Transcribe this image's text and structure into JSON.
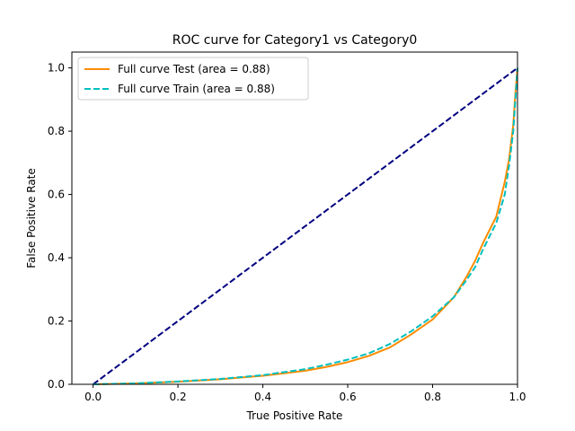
{
  "chart_data": {
    "type": "line",
    "title": "ROC curve for Category1 vs Category0",
    "xlabel": "True Positive Rate",
    "ylabel": "False Positive Rate",
    "xlim": [
      -0.05,
      1.0
    ],
    "ylim": [
      0.0,
      1.05
    ],
    "xticks": [
      "0.0",
      "0.2",
      "0.4",
      "0.6",
      "0.8",
      "1.0"
    ],
    "yticks": [
      "0.0",
      "0.2",
      "0.4",
      "0.6",
      "0.8",
      "1.0"
    ],
    "grid": false,
    "legend_position": "upper-left",
    "series": [
      {
        "name": "Full curve Test (area = 0.88)",
        "color": "#ff8c00",
        "style": "solid",
        "points": [
          [
            0.0,
            0.0
          ],
          [
            0.1,
            0.003
          ],
          [
            0.2,
            0.008
          ],
          [
            0.3,
            0.016
          ],
          [
            0.4,
            0.027
          ],
          [
            0.5,
            0.043
          ],
          [
            0.55,
            0.055
          ],
          [
            0.6,
            0.07
          ],
          [
            0.65,
            0.09
          ],
          [
            0.7,
            0.117
          ],
          [
            0.75,
            0.158
          ],
          [
            0.8,
            0.205
          ],
          [
            0.85,
            0.275
          ],
          [
            0.88,
            0.34
          ],
          [
            0.9,
            0.39
          ],
          [
            0.92,
            0.45
          ],
          [
            0.95,
            0.53
          ],
          [
            0.97,
            0.64
          ],
          [
            0.98,
            0.71
          ],
          [
            0.99,
            0.82
          ],
          [
            0.995,
            0.92
          ],
          [
            1.0,
            1.0
          ]
        ]
      },
      {
        "name": "Full curve Train (area = 0.88)",
        "color": "#00bfbf",
        "style": "dashed",
        "points": [
          [
            0.0,
            0.0
          ],
          [
            0.1,
            0.003
          ],
          [
            0.2,
            0.009
          ],
          [
            0.3,
            0.017
          ],
          [
            0.4,
            0.029
          ],
          [
            0.5,
            0.048
          ],
          [
            0.55,
            0.062
          ],
          [
            0.6,
            0.078
          ],
          [
            0.65,
            0.098
          ],
          [
            0.7,
            0.128
          ],
          [
            0.75,
            0.168
          ],
          [
            0.8,
            0.215
          ],
          [
            0.85,
            0.275
          ],
          [
            0.88,
            0.33
          ],
          [
            0.9,
            0.37
          ],
          [
            0.92,
            0.43
          ],
          [
            0.95,
            0.51
          ],
          [
            0.97,
            0.6
          ],
          [
            0.98,
            0.69
          ],
          [
            0.99,
            0.8
          ],
          [
            0.995,
            0.9
          ],
          [
            1.0,
            1.0
          ]
        ]
      },
      {
        "name": "",
        "color": "#000080",
        "style": "dashed",
        "points": [
          [
            0.0,
            0.0
          ],
          [
            1.0,
            1.0
          ]
        ]
      }
    ]
  }
}
